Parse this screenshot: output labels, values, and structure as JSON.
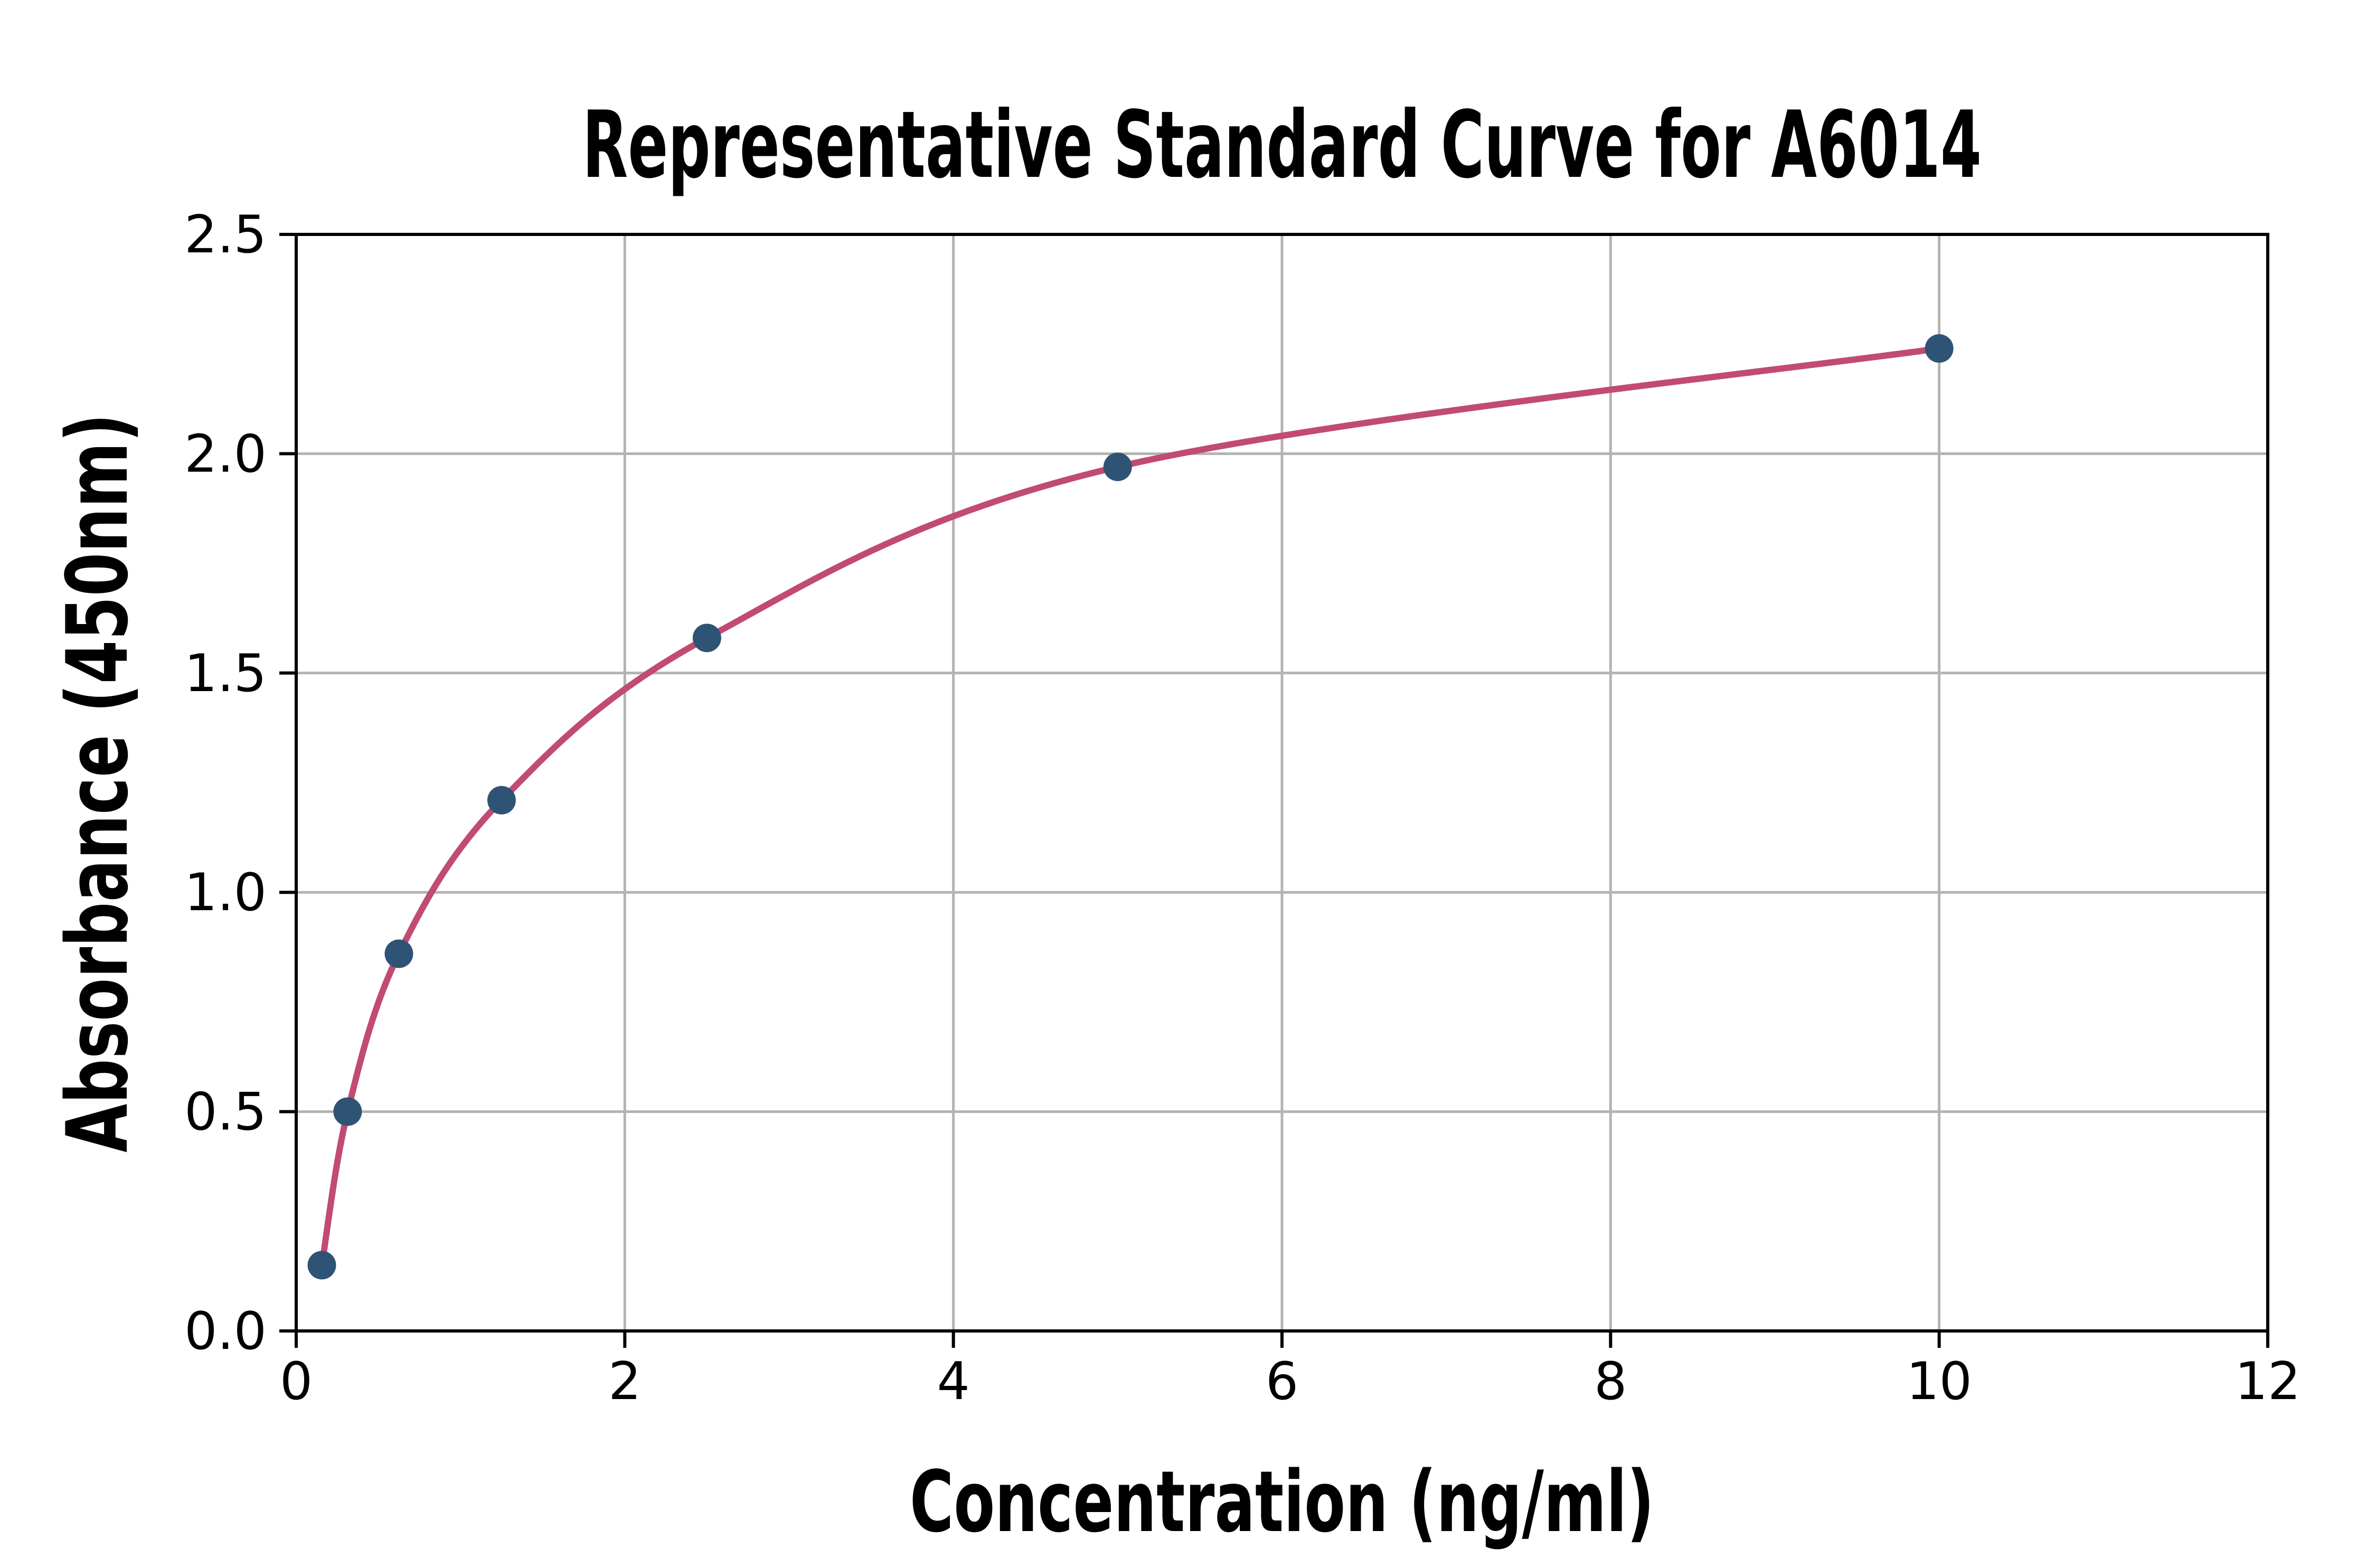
{
  "title": "Representative Standard Curve for A6014",
  "x_axis": {
    "label": "Concentration (ng/ml)",
    "tick_labels": [
      "0",
      "2",
      "4",
      "6",
      "8",
      "10",
      "12"
    ],
    "tick_values": [
      0,
      2,
      4,
      6,
      8,
      10,
      12
    ]
  },
  "y_axis": {
    "label": "Absorbance (450nm)",
    "tick_labels": [
      "0.0",
      "0.5",
      "1.0",
      "1.5",
      "2.0",
      "2.5"
    ],
    "tick_values": [
      0,
      0.5,
      1.0,
      1.5,
      2.0,
      2.5
    ]
  },
  "chart_data": {
    "type": "scatter",
    "title": "Representative Standard Curve for A6014",
    "xlabel": "Concentration (ng/ml)",
    "ylabel": "Absorbance (450nm)",
    "xlim": [
      0,
      12
    ],
    "ylim": [
      0,
      2.5
    ],
    "grid": true,
    "legend": "none",
    "series": [
      {
        "name": "standard-points",
        "x": [
          0.156,
          0.313,
          0.625,
          1.25,
          2.5,
          5,
          10
        ],
        "y": [
          0.15,
          0.5,
          0.86,
          1.21,
          1.58,
          1.97,
          2.24
        ]
      }
    ],
    "fit_curve": {
      "description": "smooth 4PL-style fit through the standard points, drawn from first point (0.156, 0.15) to last point (10, 2.24)"
    },
    "colors": {
      "curve": "#C14B72",
      "points": "#2E5375",
      "grid": "#B3B3B3",
      "axis": "#000000",
      "background": "#FFFFFF"
    }
  }
}
